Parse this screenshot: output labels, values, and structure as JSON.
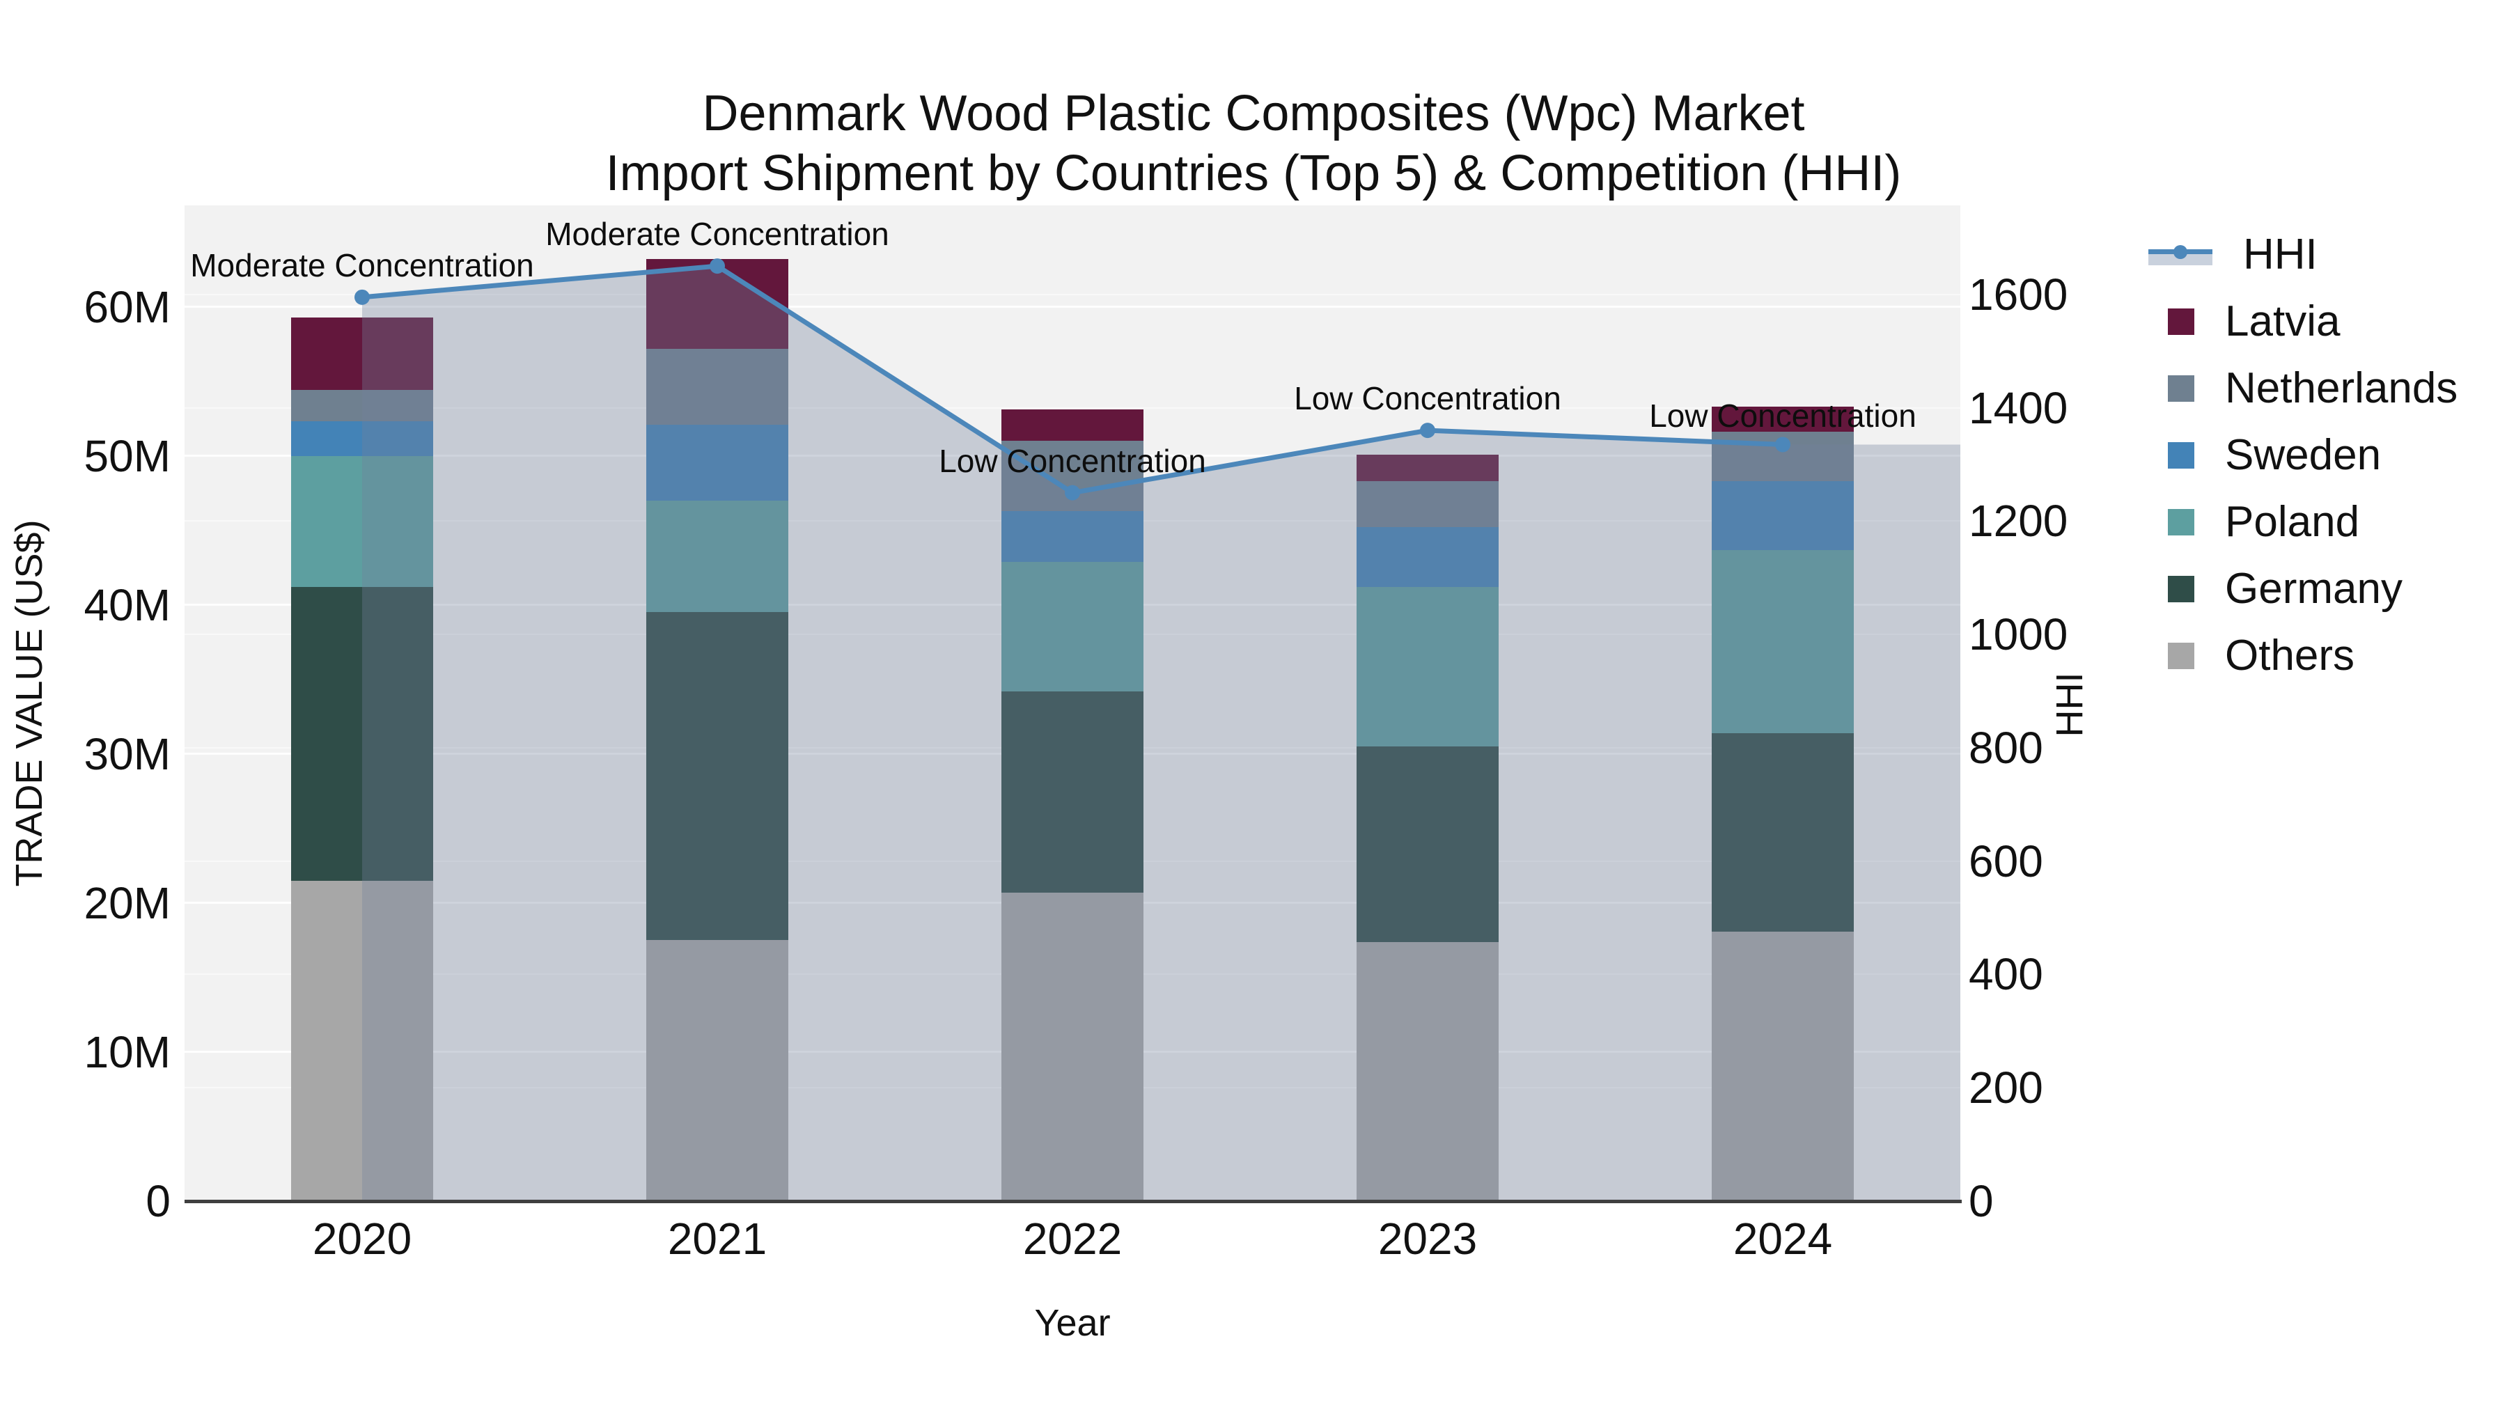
{
  "title": {
    "line1": "Denmark Wood Plastic Composites (Wpc) Market",
    "line2": "Import Shipment by Countries (Top 5) & Competition (HHI)"
  },
  "axes": {
    "x_title": "Year",
    "y_left_title": "TRADE VALUE (US$)",
    "y_right_title": "HHI",
    "x_ticks": [
      "2020",
      "2021",
      "2022",
      "2023",
      "2024"
    ],
    "y_left_ticks": [
      {
        "v": 0,
        "label": "0"
      },
      {
        "v": 10,
        "label": "10M"
      },
      {
        "v": 20,
        "label": "20M"
      },
      {
        "v": 30,
        "label": "30M"
      },
      {
        "v": 40,
        "label": "40M"
      },
      {
        "v": 50,
        "label": "50M"
      },
      {
        "v": 60,
        "label": "60M"
      }
    ],
    "y_right_ticks": [
      {
        "v": 0,
        "label": "0"
      },
      {
        "v": 200,
        "label": "200"
      },
      {
        "v": 400,
        "label": "400"
      },
      {
        "v": 600,
        "label": "600"
      },
      {
        "v": 800,
        "label": "800"
      },
      {
        "v": 1000,
        "label": "1000"
      },
      {
        "v": 1200,
        "label": "1200"
      },
      {
        "v": 1400,
        "label": "1400"
      },
      {
        "v": 1600,
        "label": "1600"
      }
    ]
  },
  "legend": [
    {
      "key": "hhi",
      "label": "HHI",
      "type": "line",
      "color": "#4c87ba"
    },
    {
      "key": "latvia",
      "label": "Latvia",
      "type": "square",
      "color": "#63173c"
    },
    {
      "key": "netherlands",
      "label": "Netherlands",
      "type": "square",
      "color": "#6f8090"
    },
    {
      "key": "sweden",
      "label": "Sweden",
      "type": "square",
      "color": "#4383b7"
    },
    {
      "key": "poland",
      "label": "Poland",
      "type": "square",
      "color": "#5d9fa0"
    },
    {
      "key": "germany",
      "label": "Germany",
      "type": "square",
      "color": "#2f4d48"
    },
    {
      "key": "others",
      "label": "Others",
      "type": "square",
      "color": "#a7a7a7"
    }
  ],
  "chart_data": {
    "type": "bar+line",
    "title": "Denmark Wood Plastic Composites (Wpc) Market Import Shipment by Countries (Top 5) & Competition (HHI)",
    "xlabel": "Year",
    "ylabel_left": "TRADE VALUE (US$)",
    "ylabel_right": "HHI",
    "categories": [
      "2020",
      "2021",
      "2022",
      "2023",
      "2024"
    ],
    "bar_unit": "million US$",
    "stack_order_bottom_to_top": [
      "Others",
      "Germany",
      "Poland",
      "Sweden",
      "Netherlands",
      "Latvia"
    ],
    "series": [
      {
        "name": "Others",
        "key": "others",
        "color": "#a7a7a7",
        "values": [
          21.5,
          17.5,
          20.7,
          17.4,
          18.1
        ]
      },
      {
        "name": "Germany",
        "key": "germany",
        "color": "#2f4d48",
        "values": [
          19.7,
          22.0,
          13.5,
          13.1,
          13.3
        ]
      },
      {
        "name": "Poland",
        "key": "poland",
        "color": "#5d9fa0",
        "values": [
          8.8,
          7.5,
          8.7,
          10.7,
          12.3
        ]
      },
      {
        "name": "Sweden",
        "key": "sweden",
        "color": "#4383b7",
        "values": [
          2.3,
          5.1,
          3.4,
          4.0,
          4.6
        ]
      },
      {
        "name": "Netherlands",
        "key": "netherlands",
        "color": "#6f8090",
        "values": [
          2.1,
          5.1,
          4.7,
          3.1,
          3.3
        ]
      },
      {
        "name": "Latvia",
        "key": "latvia",
        "color": "#63173c",
        "values": [
          4.9,
          6.0,
          2.1,
          1.8,
          1.7
        ]
      }
    ],
    "bar_totals": [
      59.3,
      63.2,
      53.1,
      50.1,
      53.3
    ],
    "hhi_line": {
      "name": "HHI",
      "color": "#4c87ba",
      "band_color": "rgba(114,130,156,0.34)",
      "values": [
        1595,
        1650,
        1250,
        1360,
        1335
      ]
    },
    "annotations": [
      {
        "text": "Moderate Concentration",
        "dy": -46
      },
      {
        "text": "Moderate Concentration",
        "dy": -46
      },
      {
        "text": "Low Concentration",
        "dy": -46
      },
      {
        "text": "Low Concentration",
        "dy": -46
      },
      {
        "text": "Low Concentration",
        "dy": -41
      }
    ],
    "ylim_left": [
      0,
      66.8
    ],
    "ylim_right": [
      0,
      1757
    ],
    "grid": true,
    "legend_position": "right",
    "plot_bg": "#f2f2f2",
    "axis_line_color": "#3f3f3f"
  }
}
